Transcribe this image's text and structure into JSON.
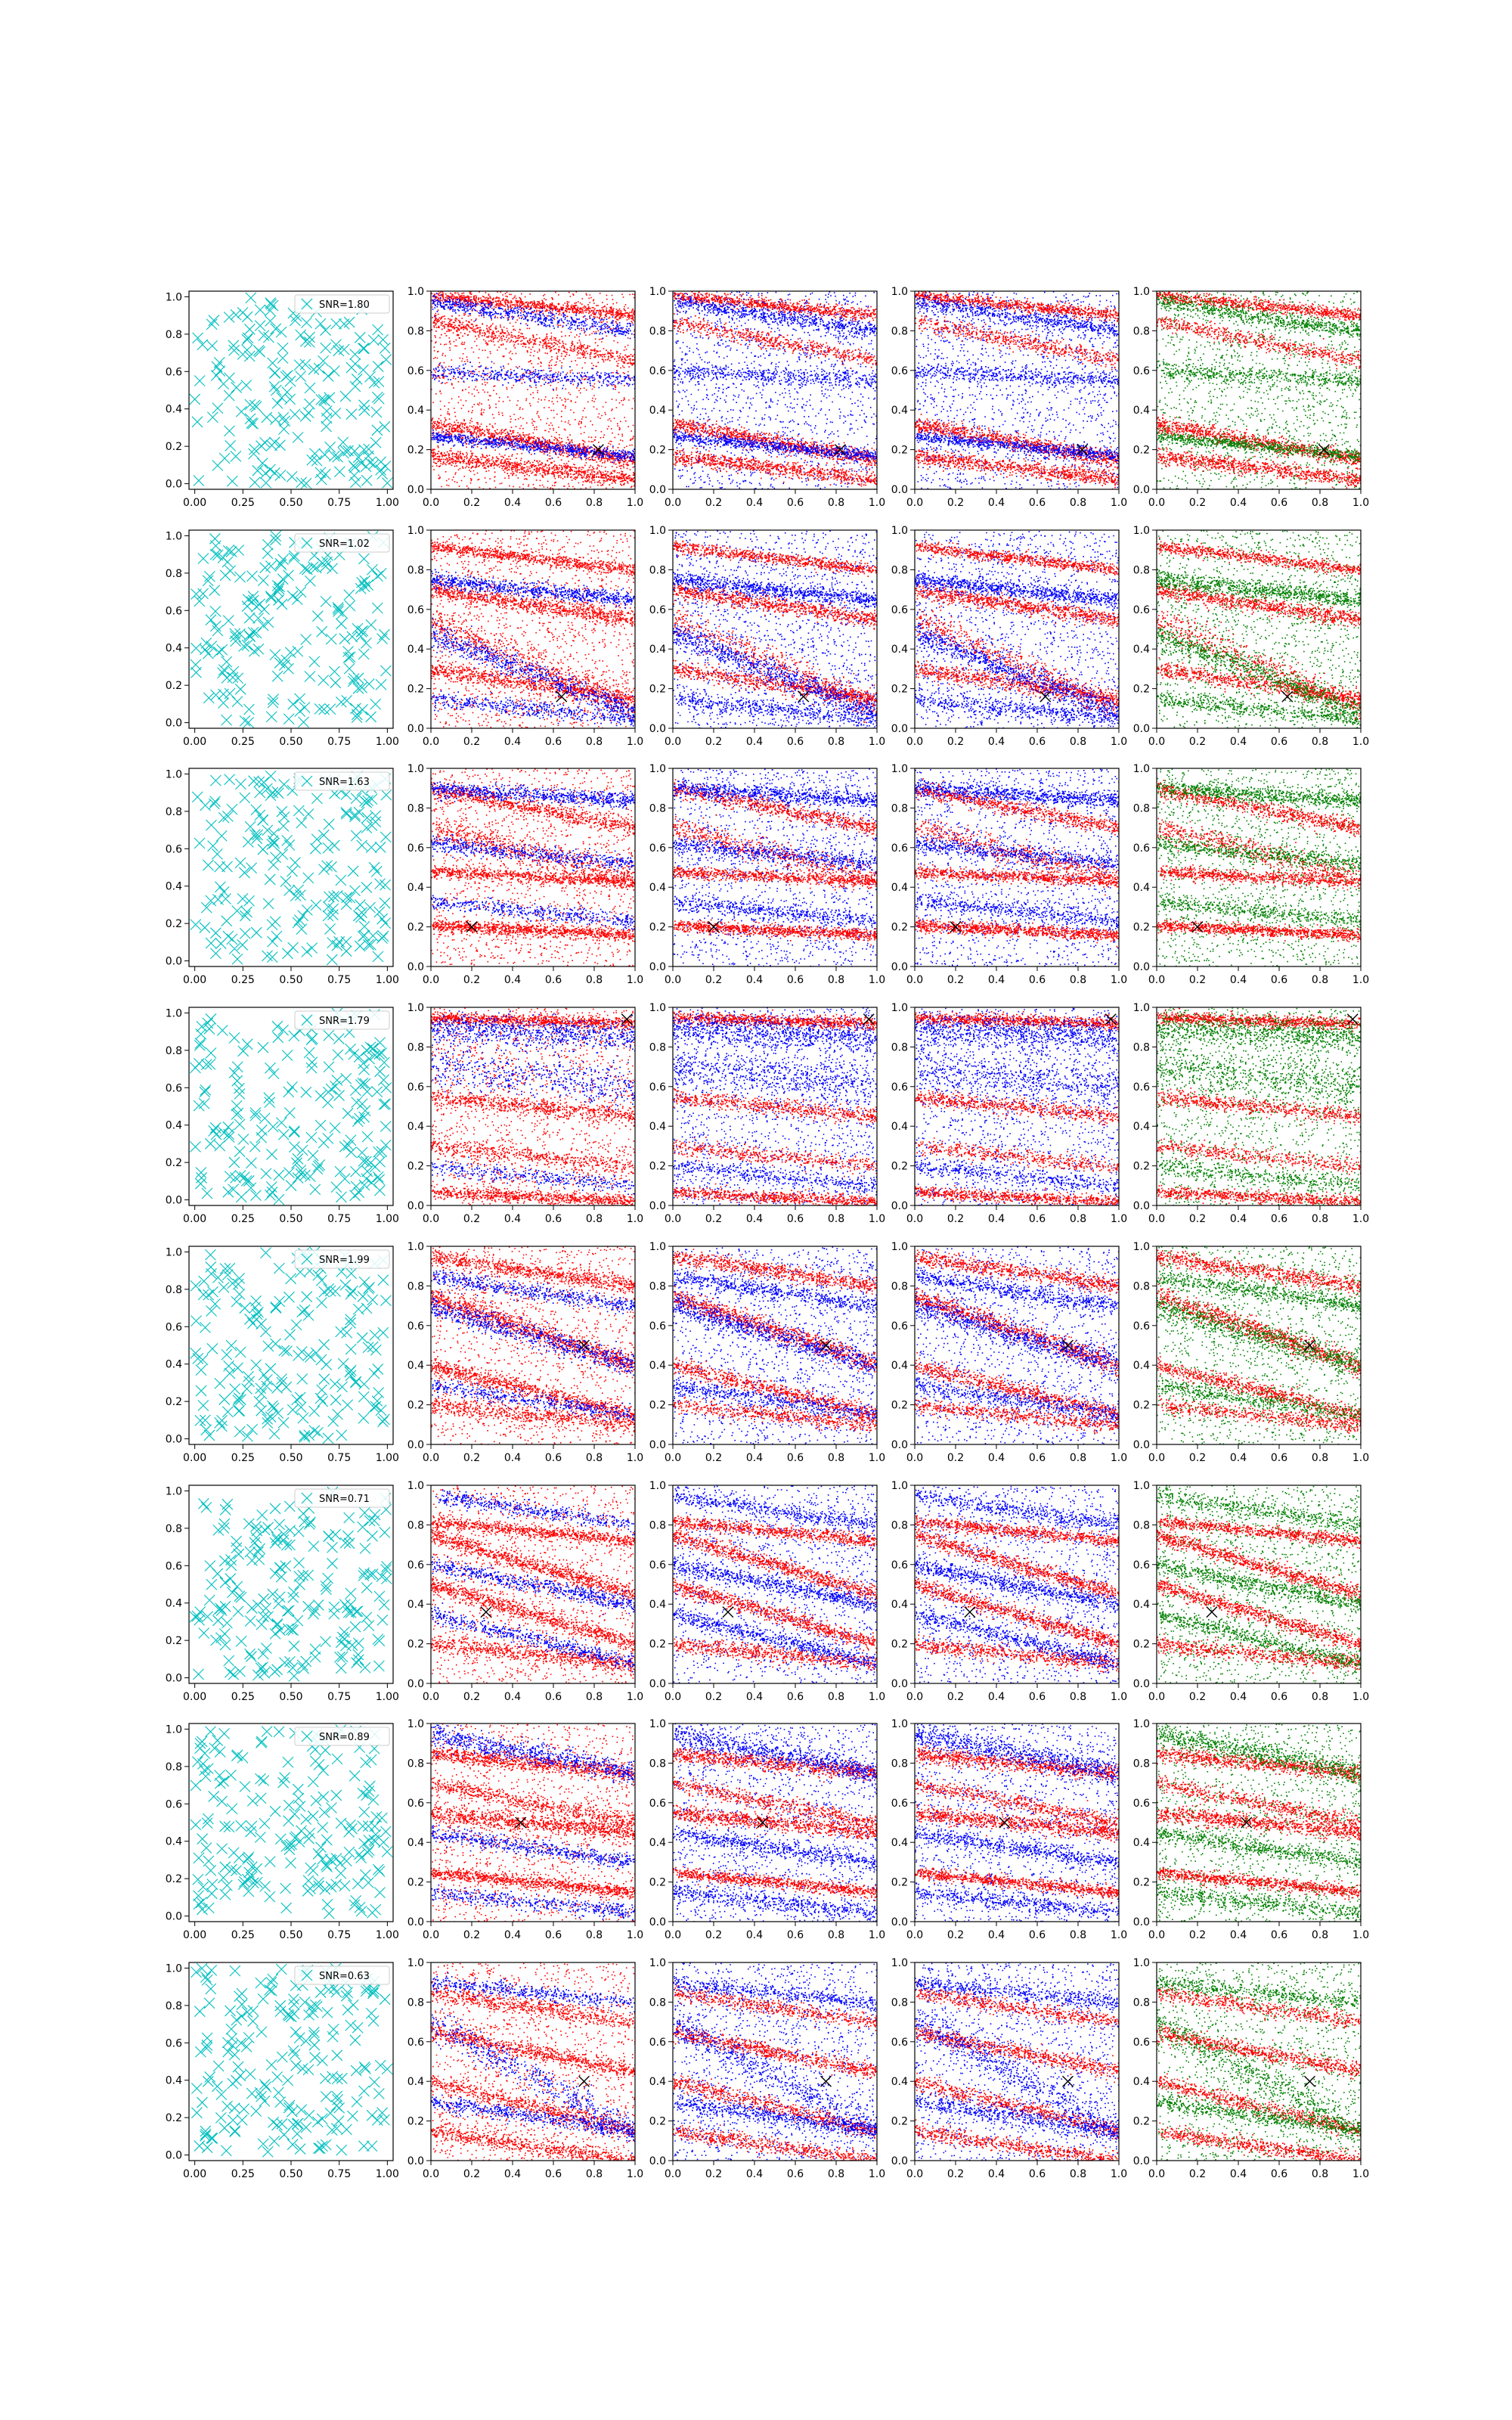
{
  "figure": {
    "rows": 8,
    "cols": 5,
    "marker_x_color": "#000000"
  },
  "colors": {
    "cyan_marker": "#00bfbf",
    "blue": "#0000ff",
    "red": "#ff0000",
    "green": "#008000",
    "legend_border": "#cccccc"
  },
  "chart_data": {
    "type": "scatter",
    "layout": "grid-8x5",
    "first_column": {
      "marker": "x",
      "x_ticks": [
        "0.00",
        "0.25",
        "0.50",
        "0.75",
        "1.00"
      ],
      "y_ticks": [
        "0.0",
        "0.2",
        "0.4",
        "0.6",
        "0.8",
        "1.0"
      ],
      "xlim": [
        -0.03,
        1.03
      ],
      "ylim": [
        -0.03,
        1.03
      ],
      "legend_placement": "upper-right",
      "color": "cyan"
    },
    "other_columns": {
      "x_ticks": [
        "0.0",
        "0.2",
        "0.4",
        "0.6",
        "0.8",
        "1.0"
      ],
      "y_ticks": [
        "0.0",
        "0.2",
        "0.4",
        "0.6",
        "0.8",
        "1.0"
      ],
      "xlim": [
        0,
        1
      ],
      "ylim": [
        0,
        1
      ],
      "column_colors": [
        [
          "red",
          "blue"
        ],
        [
          "blue",
          "red"
        ],
        [
          "blue",
          "red"
        ],
        [
          "green",
          "red"
        ]
      ]
    },
    "rows": [
      {
        "snr": "SNR=1.80",
        "target": [
          0.82,
          0.2
        ],
        "bands": [
          [
            0.33,
            -0.18,
            0.02,
            "red",
            1.0
          ],
          [
            0.17,
            -0.12,
            0.02,
            "red",
            0.9
          ],
          [
            0.98,
            -0.1,
            0.015,
            "red",
            0.9
          ],
          [
            0.85,
            -0.2,
            0.02,
            "red",
            0.6
          ],
          [
            0.27,
            -0.1,
            0.015,
            "blue",
            0.8
          ],
          [
            0.95,
            -0.15,
            0.02,
            "blue",
            0.7
          ],
          [
            0.6,
            -0.05,
            0.02,
            "blue",
            0.5
          ]
        ]
      },
      {
        "snr": "SNR=1.02",
        "target": [
          0.64,
          0.16
        ],
        "bands": [
          [
            0.7,
            -0.15,
            0.02,
            "red",
            0.9
          ],
          [
            0.92,
            -0.12,
            0.015,
            "red",
            0.8
          ],
          [
            0.3,
            -0.15,
            0.02,
            "red",
            0.8
          ],
          [
            0.55,
            -0.45,
            0.04,
            "red",
            0.6
          ],
          [
            0.75,
            -0.1,
            0.02,
            "blue",
            0.9
          ],
          [
            0.48,
            -0.4,
            0.03,
            "blue",
            0.8
          ],
          [
            0.15,
            -0.1,
            0.02,
            "blue",
            0.5
          ]
        ]
      },
      {
        "snr": "SNR=1.63",
        "target": [
          0.2,
          0.2
        ],
        "bands": [
          [
            0.21,
            -0.05,
            0.015,
            "red",
            1.0
          ],
          [
            0.48,
            -0.05,
            0.015,
            "red",
            0.8
          ],
          [
            0.9,
            -0.2,
            0.02,
            "red",
            0.8
          ],
          [
            0.7,
            -0.25,
            0.03,
            "red",
            0.6
          ],
          [
            0.9,
            -0.06,
            0.02,
            "blue",
            0.8
          ],
          [
            0.62,
            -0.1,
            0.02,
            "blue",
            0.6
          ],
          [
            0.33,
            -0.1,
            0.02,
            "blue",
            0.5
          ]
        ]
      },
      {
        "snr": "SNR=1.79",
        "target": [
          0.96,
          0.94
        ],
        "bands": [
          [
            0.95,
            -0.03,
            0.015,
            "red",
            1.0
          ],
          [
            0.07,
            -0.05,
            0.015,
            "red",
            0.8
          ],
          [
            0.55,
            -0.1,
            0.02,
            "red",
            0.7
          ],
          [
            0.3,
            -0.1,
            0.02,
            "red",
            0.5
          ],
          [
            0.9,
            -0.05,
            0.04,
            "blue",
            0.9
          ],
          [
            0.7,
            -0.1,
            0.05,
            "blue",
            0.6
          ],
          [
            0.2,
            -0.1,
            0.02,
            "blue",
            0.4
          ]
        ]
      },
      {
        "snr": "SNR=1.99",
        "target": [
          0.75,
          0.5
        ],
        "bands": [
          [
            0.75,
            -0.35,
            0.025,
            "red",
            1.0
          ],
          [
            0.4,
            -0.25,
            0.02,
            "red",
            0.8
          ],
          [
            0.95,
            -0.15,
            0.02,
            "red",
            0.8
          ],
          [
            0.2,
            -0.1,
            0.02,
            "red",
            0.6
          ],
          [
            0.7,
            -0.3,
            0.03,
            "blue",
            0.8
          ],
          [
            0.85,
            -0.15,
            0.02,
            "blue",
            0.6
          ],
          [
            0.3,
            -0.15,
            0.02,
            "blue",
            0.5
          ]
        ]
      },
      {
        "snr": "SNR=0.71",
        "target": [
          0.27,
          0.36
        ],
        "bands": [
          [
            0.75,
            -0.3,
            0.02,
            "red",
            0.9
          ],
          [
            0.5,
            -0.3,
            0.02,
            "red",
            0.9
          ],
          [
            0.82,
            -0.1,
            0.015,
            "red",
            0.8
          ],
          [
            0.2,
            -0.1,
            0.02,
            "red",
            0.7
          ],
          [
            0.6,
            -0.2,
            0.02,
            "blue",
            0.7
          ],
          [
            0.35,
            -0.25,
            0.02,
            "blue",
            0.6
          ],
          [
            0.95,
            -0.15,
            0.02,
            "blue",
            0.5
          ]
        ]
      },
      {
        "snr": "SNR=0.89",
        "target": [
          0.44,
          0.5
        ],
        "bands": [
          [
            0.55,
            -0.1,
            0.02,
            "red",
            0.9
          ],
          [
            0.25,
            -0.1,
            0.015,
            "red",
            0.9
          ],
          [
            0.85,
            -0.1,
            0.02,
            "red",
            0.9
          ],
          [
            0.7,
            -0.2,
            0.02,
            "red",
            0.6
          ],
          [
            0.95,
            -0.2,
            0.03,
            "blue",
            0.8
          ],
          [
            0.45,
            -0.15,
            0.02,
            "blue",
            0.6
          ],
          [
            0.15,
            -0.1,
            0.02,
            "blue",
            0.5
          ]
        ]
      },
      {
        "snr": "SNR=0.63",
        "target": [
          0.75,
          0.4
        ],
        "bands": [
          [
            0.65,
            -0.2,
            0.02,
            "red",
            0.8
          ],
          [
            0.4,
            -0.25,
            0.02,
            "red",
            0.7
          ],
          [
            0.15,
            -0.15,
            0.02,
            "red",
            0.7
          ],
          [
            0.85,
            -0.15,
            0.02,
            "red",
            0.6
          ],
          [
            0.7,
            -0.55,
            0.04,
            "blue",
            0.6
          ],
          [
            0.3,
            -0.15,
            0.02,
            "blue",
            0.6
          ],
          [
            0.9,
            -0.1,
            0.02,
            "blue",
            0.5
          ]
        ]
      }
    ]
  }
}
